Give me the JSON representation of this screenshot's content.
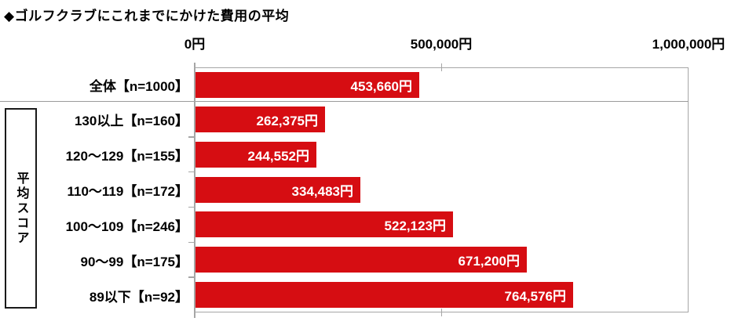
{
  "title": "◆ゴルフクラブにこれまでにかけた費用の平均",
  "axis": {
    "tick_labels": [
      "0円",
      "500,000円",
      "1,000,000円"
    ]
  },
  "group_label": "平均スコア",
  "colors": {
    "bar": "#d60d12",
    "plot_border": "#a6a6a6",
    "value_text": "#ffffff"
  },
  "chart_data": {
    "type": "bar",
    "orientation": "horizontal",
    "title": "◆ゴルフクラブにこれまでにかけた費用の平均",
    "categories": [
      "全体【n=1000】",
      "130以上【n=160】",
      "120〜129【n=155】",
      "110〜119【n=172】",
      "100〜109【n=246】",
      "90〜99【n=175】",
      "89以下【n=92】"
    ],
    "values": [
      453660,
      262375,
      244552,
      334483,
      522123,
      671200,
      764576
    ],
    "value_labels": [
      "453,660円",
      "262,375円",
      "244,552円",
      "334,483円",
      "522,123円",
      "671,200円",
      "764,576円"
    ],
    "x_ticks": [
      0,
      500000,
      1000000
    ],
    "x_tick_labels": [
      "0円",
      "500,000円",
      "1,000,000円"
    ],
    "xlim": [
      0,
      1000000
    ],
    "grid": false,
    "legend": false,
    "group": {
      "label": "平均スコア",
      "applies_to_category_indexes": [
        1,
        2,
        3,
        4,
        5,
        6
      ]
    }
  }
}
